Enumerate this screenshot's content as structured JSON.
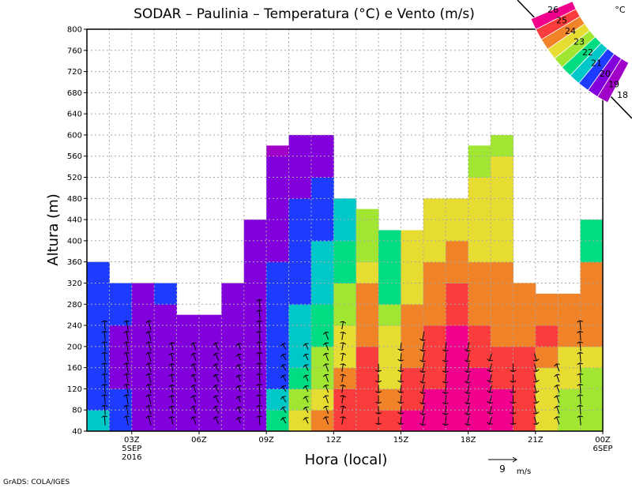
{
  "chart_data": {
    "type": "heatmap",
    "title": "SODAR – Paulinia – Temperatura (°C) e Vento (m/s)",
    "xlabel": "Hora (local)",
    "ylabel": "Altura (m)",
    "xlim": [
      1,
      24
    ],
    "ylim": [
      40,
      800
    ],
    "yticks": [
      40,
      80,
      120,
      160,
      200,
      240,
      280,
      320,
      360,
      400,
      440,
      480,
      520,
      560,
      600,
      640,
      680,
      720,
      760,
      800
    ],
    "xticks": [
      {
        "h": 3,
        "label": "03Z",
        "sub1": "5SEP",
        "sub2": "2016"
      },
      {
        "h": 6,
        "label": "06Z"
      },
      {
        "h": 9,
        "label": "09Z"
      },
      {
        "h": 12,
        "label": "12Z"
      },
      {
        "h": 15,
        "label": "15Z"
      },
      {
        "h": 18,
        "label": "18Z"
      },
      {
        "h": 21,
        "label": "21Z"
      },
      {
        "h": 24,
        "label": "00Z",
        "sub1": "6SEP"
      }
    ],
    "grid": true,
    "bin_height_m": 40,
    "columns": [
      {
        "h": 1,
        "top": 360,
        "t": [
          20.5,
          19.5,
          19.5,
          19.5,
          19.5,
          19.5,
          19.5,
          19.5
        ]
      },
      {
        "h": 2,
        "top": 320,
        "t": [
          19.5,
          19.5,
          18.5,
          18.5,
          18.5,
          19.5,
          19.5
        ]
      },
      {
        "h": 3,
        "top": 320,
        "t": [
          18.5,
          18.5,
          18.5,
          18.5,
          18.5,
          18.5,
          18.5
        ]
      },
      {
        "h": 4,
        "top": 320,
        "t": [
          18.5,
          18.5,
          18.5,
          18.5,
          18.5,
          18.5,
          19.5
        ]
      },
      {
        "h": 5,
        "top": 260,
        "t": [
          18.5,
          18.5,
          18.5,
          18.5,
          18.5,
          18.5
        ]
      },
      {
        "h": 6,
        "top": 260,
        "t": [
          18.5,
          18.5,
          18.5,
          18.5,
          18.5,
          18.5
        ]
      },
      {
        "h": 7,
        "top": 320,
        "t": [
          18.5,
          18.5,
          18.5,
          18.5,
          18.5,
          18.5,
          18.5
        ]
      },
      {
        "h": 8,
        "top": 440,
        "t": [
          18.5,
          18.5,
          18.5,
          18.5,
          18.5,
          18.5,
          18.5,
          18.5,
          18.5,
          18.5
        ]
      },
      {
        "h": 9,
        "top": 580,
        "t": [
          21.5,
          20.5,
          19.5,
          19.5,
          19.5,
          19.5,
          19.5,
          19.5,
          18.5,
          18.5,
          18.5,
          18.5,
          18.5,
          17.5
        ]
      },
      {
        "h": 10,
        "top": 600,
        "t": [
          23.5,
          22.5,
          21.5,
          20.5,
          20.5,
          20.5,
          19.5,
          19.5,
          19.5,
          19.5,
          19.5,
          18.5,
          18.5,
          18.5
        ]
      },
      {
        "h": 11,
        "top": 600,
        "t": [
          24.5,
          23.5,
          22.5,
          22.5,
          21.5,
          21.5,
          20.5,
          20.5,
          20.5,
          19.5,
          19.5,
          19.5,
          18.5,
          18.5
        ]
      },
      {
        "h": 12,
        "top": 480,
        "t": [
          25.5,
          25.5,
          24.5,
          23.5,
          23.5,
          22.5,
          22.5,
          21.5,
          21.5,
          20.5,
          20.5
        ]
      },
      {
        "h": 13,
        "top": 460,
        "t": [
          25.5,
          25.5,
          25.5,
          25.5,
          24.5,
          24.5,
          24.5,
          23.5,
          22.5,
          22.5,
          22.5
        ]
      },
      {
        "h": 14,
        "top": 420,
        "t": [
          25.5,
          24.5,
          23.5,
          23.5,
          23.5,
          22.5,
          21.5,
          21.5,
          21.5,
          21.5
        ]
      },
      {
        "h": 15,
        "top": 420,
        "t": [
          26.5,
          25.5,
          25.5,
          24.5,
          24.5,
          24.5,
          23.5,
          23.5,
          23.5,
          23.5
        ]
      },
      {
        "h": 16,
        "top": 480,
        "t": [
          26.5,
          26.5,
          25.5,
          25.5,
          25.5,
          24.5,
          24.5,
          24.5,
          23.5,
          23.5,
          23.5
        ]
      },
      {
        "h": 17,
        "top": 480,
        "t": [
          26.5,
          26.5,
          26.5,
          26.5,
          26.5,
          25.5,
          25.5,
          24.5,
          24.5,
          23.5,
          23.5
        ]
      },
      {
        "h": 18,
        "top": 580,
        "t": [
          26.5,
          26.5,
          26.5,
          25.5,
          25.5,
          24.5,
          24.5,
          24.5,
          23.5,
          23.5,
          23.5,
          23.5,
          22.5,
          22.5
        ]
      },
      {
        "h": 19,
        "top": 600,
        "t": [
          26.5,
          26.5,
          25.5,
          25.5,
          24.5,
          24.5,
          24.5,
          24.5,
          23.5,
          23.5,
          23.5,
          23.5,
          23.5,
          22.5
        ]
      },
      {
        "h": 20,
        "top": 320,
        "t": [
          25.5,
          25.5,
          25.5,
          25.5,
          24.5,
          24.5,
          24.5
        ]
      },
      {
        "h": 21,
        "top": 300,
        "t": [
          23.5,
          23.5,
          23.5,
          24.5,
          25.5,
          24.5,
          24.5
        ]
      },
      {
        "h": 22,
        "top": 300,
        "t": [
          22.5,
          22.5,
          23.5,
          23.5,
          24.5,
          24.5,
          24.5
        ]
      },
      {
        "h": 23,
        "top": 440,
        "t": [
          22.5,
          22.5,
          22.5,
          23.5,
          24.5,
          24.5,
          24.5,
          24.5,
          21.5,
          21.5
        ]
      }
    ],
    "wind": [
      {
        "h": 1.8,
        "dir": 95,
        "speed": 3,
        "from": 60,
        "to": 240
      },
      {
        "h": 2.8,
        "dir": 100,
        "speed": 3,
        "from": 60,
        "to": 240
      },
      {
        "h": 3.8,
        "dir": 105,
        "speed": 3,
        "from": 60,
        "to": 240
      },
      {
        "h": 4.8,
        "dir": 100,
        "speed": 2.5,
        "from": 60,
        "to": 200
      },
      {
        "h": 5.8,
        "dir": 110,
        "speed": 2.5,
        "from": 60,
        "to": 200
      },
      {
        "h": 6.8,
        "dir": 115,
        "speed": 2.5,
        "from": 60,
        "to": 200
      },
      {
        "h": 7.8,
        "dir": 110,
        "speed": 2,
        "from": 60,
        "to": 200
      },
      {
        "h": 8.7,
        "dir": 95,
        "speed": 3,
        "from": 60,
        "to": 280
      },
      {
        "h": 9.8,
        "dir": 120,
        "speed": 2,
        "from": 60,
        "to": 200
      },
      {
        "h": 10.8,
        "dir": 115,
        "speed": 2,
        "from": 60,
        "to": 200
      },
      {
        "h": 11.7,
        "dir": 110,
        "speed": 2.5,
        "from": 60,
        "to": 220
      },
      {
        "h": 12.4,
        "dir": 80,
        "speed": 2.5,
        "from": 60,
        "to": 240
      },
      {
        "h": 14.0,
        "dir": 270,
        "speed": 2.5,
        "from": 60,
        "to": 160
      },
      {
        "h": 15.0,
        "dir": 265,
        "speed": 2.5,
        "from": 60,
        "to": 200
      },
      {
        "h": 16.0,
        "dir": 260,
        "speed": 3,
        "from": 60,
        "to": 220
      },
      {
        "h": 17.0,
        "dir": 265,
        "speed": 3,
        "from": 60,
        "to": 200
      },
      {
        "h": 18.0,
        "dir": 260,
        "speed": 3,
        "from": 60,
        "to": 200
      },
      {
        "h": 19.0,
        "dir": 255,
        "speed": 2.5,
        "from": 60,
        "to": 180
      },
      {
        "h": 20.0,
        "dir": 270,
        "speed": 2.5,
        "from": 60,
        "to": 160
      },
      {
        "h": 21.0,
        "dir": 285,
        "speed": 2.5,
        "from": 60,
        "to": 180
      },
      {
        "h": 22.0,
        "dir": 110,
        "speed": 2.5,
        "from": 60,
        "to": 160
      },
      {
        "h": 23.0,
        "dir": 95,
        "speed": 3,
        "from": 60,
        "to": 240
      }
    ],
    "wind_reference": {
      "value": "9",
      "unit": "m/s"
    },
    "colorbar": {
      "unit": "°C",
      "labels": [
        "18",
        "19",
        "20",
        "21",
        "22",
        "23",
        "24",
        "25",
        "26"
      ],
      "colors": [
        "#a000c8",
        "#8200dc",
        "#1e3cff",
        "#00c8c8",
        "#00dc82",
        "#a0e632",
        "#e6dc32",
        "#f08228",
        "#fa3c3c",
        "#f0008c"
      ]
    }
  },
  "footer": "GrADS: COLA/IGES"
}
